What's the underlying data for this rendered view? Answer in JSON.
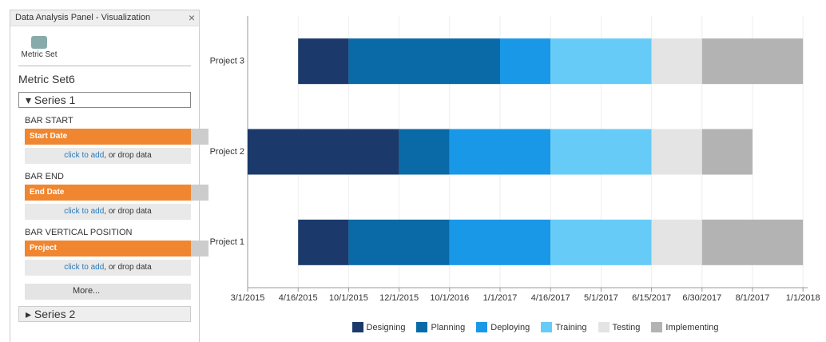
{
  "panel": {
    "title": "Data Analysis Panel - Visualization",
    "tool": "Metric Set",
    "metric_set": "Metric Set6",
    "series_1": "Series 1",
    "series_2": "Series 2",
    "more": "More...",
    "slots": [
      {
        "label": "BAR START",
        "field": "Start Date",
        "add_link": "click to add",
        "add_text": ", or drop data"
      },
      {
        "label": "BAR END",
        "field": "End Date",
        "add_link": "click to add",
        "add_text": ", or drop data"
      },
      {
        "label": "BAR VERTICAL POSITION",
        "field": "Project",
        "add_link": "click to add",
        "add_text": ", or drop data"
      }
    ]
  },
  "chart_data": {
    "type": "gantt",
    "categories": [
      "3/1/2015",
      "4/16/2015",
      "10/1/2015",
      "12/1/2015",
      "10/1/2016",
      "1/1/2017",
      "4/16/2017",
      "5/1/2017",
      "6/15/2017",
      "6/30/2017",
      "8/1/2017",
      "1/1/2018"
    ],
    "rows": [
      "Project 1",
      "Project 2",
      "Project 3"
    ],
    "grid": true,
    "series": [
      {
        "name": "Designing",
        "color": "#1b3a6b",
        "start": [
          "4/16/2015",
          "3/1/2015",
          "4/16/2015"
        ],
        "end": [
          "10/1/2015",
          "12/1/2015",
          "10/1/2015"
        ]
      },
      {
        "name": "Planning",
        "color": "#0a6aa8",
        "start": [
          "10/1/2015",
          "12/1/2015",
          "10/1/2015"
        ],
        "end": [
          "10/1/2016",
          "10/1/2016",
          "1/1/2017"
        ]
      },
      {
        "name": "Deploying",
        "color": "#1a98e8",
        "start": [
          "10/1/2016",
          "10/1/2016",
          "1/1/2017"
        ],
        "end": [
          "4/16/2017",
          "4/16/2017",
          "4/16/2017"
        ]
      },
      {
        "name": "Training",
        "color": "#66ccf7",
        "start": [
          "4/16/2017",
          "4/16/2017",
          "4/16/2017"
        ],
        "end": [
          "6/15/2017",
          "6/15/2017",
          "6/15/2017"
        ]
      },
      {
        "name": "Testing",
        "color": "#e4e4e4",
        "start": [
          "6/15/2017",
          "6/15/2017",
          "6/15/2017"
        ],
        "end": [
          "6/30/2017",
          "6/30/2017",
          "6/30/2017"
        ]
      },
      {
        "name": "Implementing",
        "color": "#b3b3b3",
        "start": [
          "6/30/2017",
          "6/30/2017",
          "6/30/2017"
        ],
        "end": [
          "1/1/2018",
          "8/1/2017",
          "1/1/2018"
        ]
      }
    ]
  }
}
